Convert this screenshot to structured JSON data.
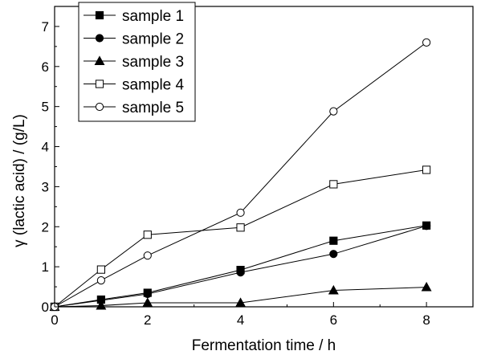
{
  "chart_data": {
    "type": "line",
    "xlabel": "Fermentation time / h",
    "ylabel": "γ (lactic acid) / (g/L)",
    "xlim": [
      0,
      9
    ],
    "ylim": [
      0,
      7.5
    ],
    "xticks": [
      0,
      2,
      4,
      6,
      8
    ],
    "yticks": [
      0,
      1,
      2,
      3,
      4,
      5,
      6,
      7
    ],
    "x": [
      0,
      1,
      2,
      4,
      6,
      8
    ],
    "grid": false,
    "legend_position": "top-left",
    "series": [
      {
        "name": "sample 1",
        "marker": "filled-square",
        "values": [
          0,
          0.18,
          0.35,
          0.92,
          1.65,
          2.03
        ]
      },
      {
        "name": "sample 2",
        "marker": "filled-circle",
        "values": [
          0,
          0.16,
          0.32,
          0.86,
          1.32,
          2.02
        ]
      },
      {
        "name": "sample 3",
        "marker": "filled-triangle",
        "values": [
          0,
          0.03,
          0.1,
          0.1,
          0.41,
          0.49
        ]
      },
      {
        "name": "sample 4",
        "marker": "open-square",
        "values": [
          0,
          0.93,
          1.8,
          1.98,
          3.06,
          3.42
        ]
      },
      {
        "name": "sample 5",
        "marker": "open-circle",
        "values": [
          0,
          0.66,
          1.28,
          2.35,
          4.88,
          6.6
        ]
      }
    ]
  }
}
